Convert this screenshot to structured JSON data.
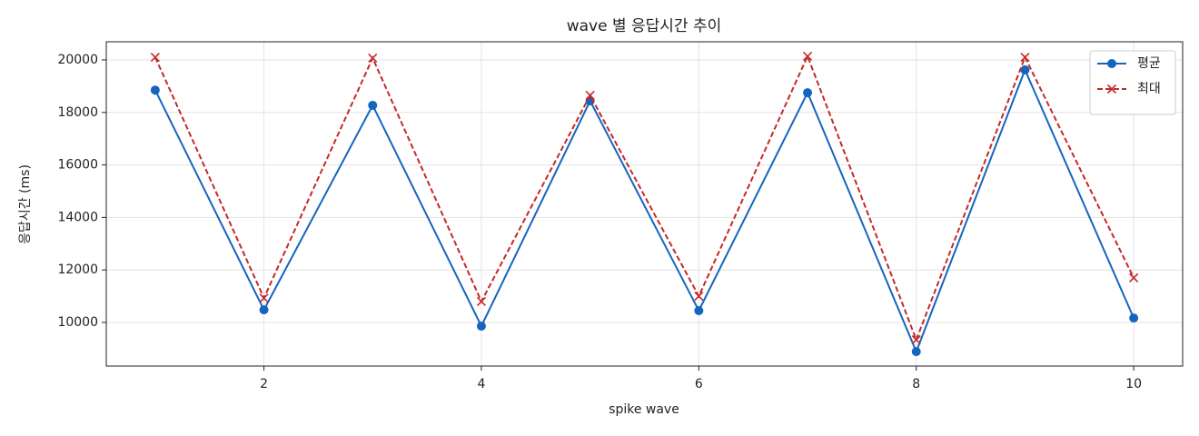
{
  "chart_data": {
    "type": "line",
    "title": "wave 별 응답시간 추이",
    "x_label": "spike wave",
    "y_label": "응답시간 (ms)",
    "x": [
      1,
      2,
      3,
      4,
      5,
      6,
      7,
      8,
      9,
      10
    ],
    "series": [
      {
        "name": "평균",
        "color": "#1565c0",
        "marker": "o",
        "linestyle": "solid",
        "values": [
          18850,
          10480,
          18270,
          9860,
          18440,
          10450,
          18750,
          8890,
          19620,
          10170
        ]
      },
      {
        "name": "최대",
        "color": "#c62828",
        "marker": "x",
        "linestyle": "dashed",
        "values": [
          20100,
          10930,
          20070,
          10800,
          18650,
          11000,
          20140,
          9340,
          20100,
          11700
        ]
      }
    ],
    "xlim": [
      0.55,
      10.45
    ],
    "xticks": [
      2,
      4,
      6,
      8,
      10
    ],
    "ylim": [
      8340,
      20690
    ],
    "yticks": [
      10000,
      12000,
      14000,
      16000,
      18000,
      20000
    ],
    "grid": true,
    "legend": "upper right"
  }
}
